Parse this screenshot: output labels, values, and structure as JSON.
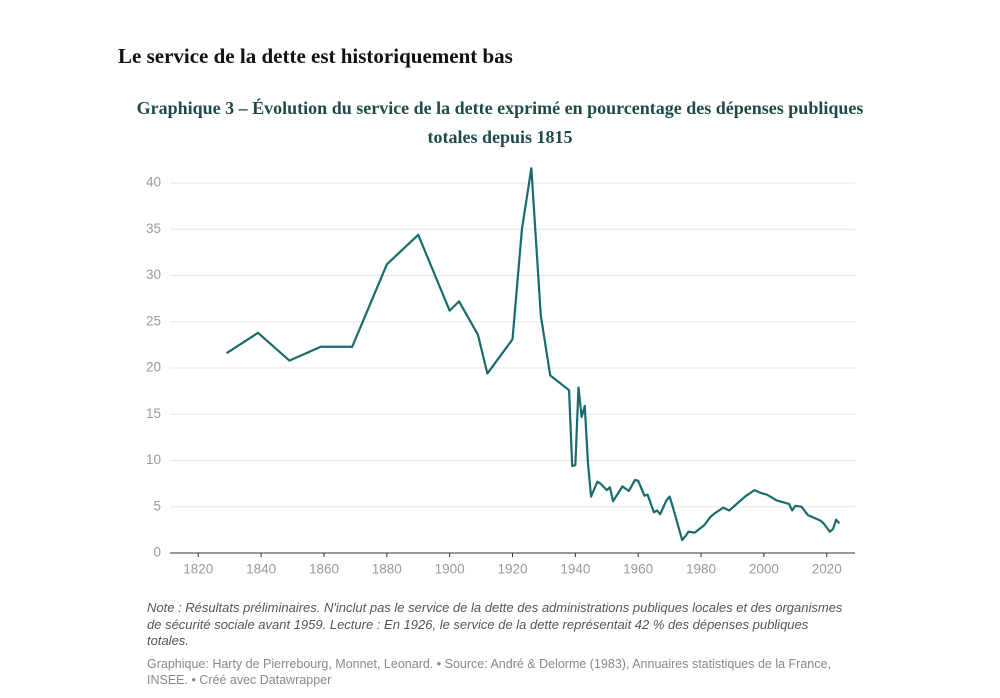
{
  "heading": "Le service de la dette est historiquement bas",
  "chart_data": {
    "type": "line",
    "title": "Graphique 3 – Évolution du service de la dette exprimé en pourcentage des dépenses publiques totales depuis 1815",
    "note": "Note : Résultats préliminaires. N'inclut pas le service de la dette des administrations publiques locales et des organismes de sécurité sociale avant 1959. Lecture : En 1926, le service de la dette représentait 42 % des dépenses publiques totales.",
    "source": "Graphique: Harty de Pierrebourg, Monnet, Leonard. • Source: André & Delorme (1983), Annuaires statistiques de la France, INSEE. • Créé avec Datawrapper",
    "x": [
      1829,
      1839,
      1849,
      1859,
      1869,
      1880,
      1890,
      1900,
      1903,
      1909,
      1912,
      1920,
      1923,
      1926,
      1929,
      1932,
      1938,
      1939,
      1940,
      1941,
      1942,
      1943,
      1944,
      1945,
      1947,
      1948,
      1950,
      1951,
      1952,
      1955,
      1957,
      1959,
      1960,
      1962,
      1963,
      1965,
      1966,
      1967,
      1969,
      1970,
      1971,
      1974,
      1975,
      1976,
      1978,
      1981,
      1983,
      1984,
      1987,
      1989,
      1992,
      1994,
      1997,
      1999,
      2001,
      2004,
      2008,
      2009,
      2010,
      2012,
      2014,
      2018,
      2019,
      2021,
      2022,
      2023,
      2024
    ],
    "series": [
      {
        "name": "Service de la dette",
        "color": "#1a6b6b",
        "values": [
          21.6,
          23.8,
          20.8,
          22.3,
          22.3,
          31.2,
          34.4,
          26.2,
          27.2,
          23.6,
          19.4,
          23.1,
          35,
          41.6,
          25.7,
          19.2,
          17.6,
          9.4,
          9.5,
          17.9,
          14.7,
          15.9,
          9.8,
          6.1,
          7.7,
          7.5,
          6.8,
          7.1,
          5.6,
          7.2,
          6.7,
          7.9,
          7.8,
          6.2,
          6.3,
          4.4,
          4.6,
          4.2,
          5.7,
          6.1,
          5,
          1.4,
          1.8,
          2.3,
          2.2,
          3,
          3.9,
          4.2,
          4.9,
          4.6,
          5.5,
          6.1,
          6.8,
          6.5,
          6.3,
          5.7,
          5.3,
          4.6,
          5.1,
          5,
          4.1,
          3.5,
          3.2,
          2.3,
          2.6,
          3.6,
          3.2
        ]
      }
    ],
    "xlim": [
      1811,
      2029
    ],
    "xticks": [
      1820,
      1840,
      1860,
      1880,
      1900,
      1920,
      1940,
      1960,
      1980,
      2000,
      2020
    ],
    "ylim": [
      0,
      42
    ],
    "yticks": [
      0,
      5,
      10,
      15,
      20,
      25,
      30,
      35,
      40
    ],
    "grid": true
  }
}
